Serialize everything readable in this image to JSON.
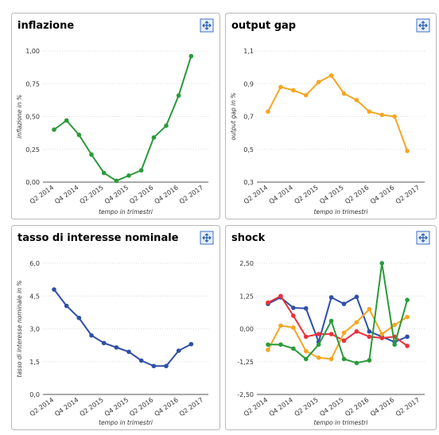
{
  "chart_data": [
    {
      "type": "line",
      "title": "inflazione",
      "x_label": "tempo in trimestri",
      "y_label": "inflazione in %",
      "categories": [
        "Q2 2014",
        null,
        "Q4 2014",
        null,
        "Q2 2015",
        null,
        "Q4 2015",
        null,
        "Q2 2016",
        null,
        "Q4 2016",
        null,
        "Q2 2017"
      ],
      "series": [
        {
          "color": "#2a9a3a",
          "values": [
            0.4,
            0.47,
            0.36,
            0.21,
            0.07,
            0.01,
            0.05,
            0.09,
            0.34,
            0.43,
            0.66,
            0.96,
            null
          ]
        }
      ],
      "ylim": [
        0,
        1
      ],
      "yticks": [
        {
          "value": 0,
          "label": "0,00"
        },
        {
          "value": 0.25,
          "label": "0,25"
        },
        {
          "value": 0.5,
          "label": "0,50"
        },
        {
          "value": 0.75,
          "label": "0,75"
        },
        {
          "value": 1,
          "label": "1,00"
        }
      ],
      "grid": true
    },
    {
      "type": "line",
      "title": "output gap",
      "x_label": "tempo in trimestri",
      "y_label": "output gap in %",
      "categories": [
        "Q2 2014",
        null,
        "Q4 2014",
        null,
        "Q2 2015",
        null,
        "Q4 2015",
        null,
        "Q2 2016",
        null,
        "Q4 2016",
        null,
        "Q2 2017"
      ],
      "series": [
        {
          "color": "#f5a623",
          "values": [
            0.73,
            0.88,
            0.86,
            0.83,
            0.91,
            0.95,
            0.84,
            0.8,
            0.73,
            0.71,
            0.7,
            0.49,
            null
          ]
        }
      ],
      "ylim": [
        0.3,
        1.1
      ],
      "yticks": [
        {
          "value": 0.3,
          "label": "0,3"
        },
        {
          "value": 0.5,
          "label": "0,5"
        },
        {
          "value": 0.7,
          "label": "0,7"
        },
        {
          "value": 0.9,
          "label": "0,9"
        },
        {
          "value": 1.1,
          "label": "1,1"
        }
      ],
      "grid": true
    },
    {
      "type": "line",
      "title": "tasso di interesse nominale",
      "x_label": "tempo in trimestri",
      "y_label": "tasso di interesse nominale in %",
      "categories": [
        "Q2 2014",
        null,
        "Q4 2014",
        null,
        "Q2 2015",
        null,
        "Q4 2015",
        null,
        "Q2 2016",
        null,
        "Q4 2016",
        null,
        "Q2 2017"
      ],
      "series": [
        {
          "color": "#2e4fa8",
          "values": [
            4.8,
            4.05,
            3.5,
            2.7,
            2.35,
            2.15,
            1.95,
            1.55,
            1.3,
            1.3,
            2.0,
            2.3,
            null
          ]
        }
      ],
      "ylim": [
        0,
        6
      ],
      "yticks": [
        {
          "value": 0,
          "label": "0,0"
        },
        {
          "value": 1.5,
          "label": "1,5"
        },
        {
          "value": 3,
          "label": "3,0"
        },
        {
          "value": 4.5,
          "label": "4,5"
        },
        {
          "value": 6,
          "label": "6,0"
        }
      ],
      "grid": true
    },
    {
      "type": "line",
      "title": "shock",
      "x_label": "tempo in trimestri",
      "categories": [
        "Q2 2014",
        null,
        "Q4 2014",
        null,
        "Q2 2015",
        null,
        "Q4 2015",
        null,
        "Q2 2016",
        null,
        "Q4 2016",
        null,
        "Q2 2017"
      ],
      "series": [
        {
          "color": "#2e4fa8",
          "values": [
            0.95,
            1.2,
            0.8,
            0.78,
            -0.5,
            1.2,
            0.95,
            1.22,
            -0.1,
            -0.3,
            -0.5,
            -0.3,
            null
          ]
        },
        {
          "color": "#e8323a",
          "values": [
            1.0,
            1.25,
            0.5,
            -0.3,
            -0.2,
            -0.2,
            -0.45,
            -0.1,
            -0.3,
            -0.35,
            -0.3,
            -0.65,
            null
          ]
        },
        {
          "color": "#f5a623",
          "values": [
            -0.8,
            0.12,
            0.05,
            -0.85,
            -1.1,
            -1.15,
            -0.15,
            0.25,
            0.75,
            -0.2,
            0.15,
            0.45,
            null
          ]
        },
        {
          "color": "#2a9a3a",
          "values": [
            -0.6,
            -0.6,
            -0.75,
            -1.15,
            -0.6,
            0.3,
            -1.15,
            -1.3,
            -1.2,
            2.5,
            -0.6,
            1.1,
            null
          ]
        }
      ],
      "ylim": [
        -2.5,
        2.5
      ],
      "yticks": [
        {
          "value": -2.5,
          "label": "-2,50"
        },
        {
          "value": -1.25,
          "label": "-1,25"
        },
        {
          "value": 0,
          "label": "0,00"
        },
        {
          "value": 1.25,
          "label": "1,25"
        },
        {
          "value": 2.5,
          "label": "2,50"
        }
      ],
      "grid": true
    }
  ]
}
